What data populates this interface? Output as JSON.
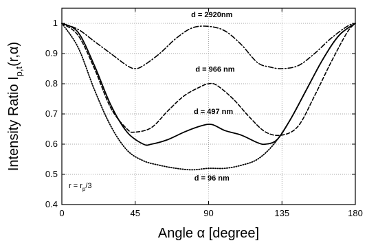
{
  "chart_data": {
    "type": "line",
    "title": "",
    "xlabel": "Angle α [degree]",
    "ylabel": "Intensity Ratio I",
    "ylabel_subscript": "p,t",
    "ylabel_suffix": "(r,α)",
    "xlim": [
      0,
      180
    ],
    "ylim": [
      0.4,
      1.05
    ],
    "x_ticks": [
      0,
      45,
      90,
      135,
      180
    ],
    "y_ticks": [
      0.4,
      0.5,
      0.6,
      0.7,
      0.8,
      0.9,
      1.0
    ],
    "x_tick_labels": [
      "0",
      "45",
      "90",
      "135",
      "180"
    ],
    "y_tick_labels": [
      "0.4",
      "0.5",
      "0.6",
      "0.7",
      "0.8",
      "0.9",
      "1"
    ],
    "grid": "horizontal-dotted",
    "inset_label": {
      "main": "r = r",
      "sub": "p",
      "tail": "/3"
    },
    "series": [
      {
        "name": "d = 2920nm",
        "style": "dash-dot",
        "points": [
          [
            0,
            1.0
          ],
          [
            10,
            0.98
          ],
          [
            20,
            0.94
          ],
          [
            30,
            0.9
          ],
          [
            40,
            0.86
          ],
          [
            45,
            0.85
          ],
          [
            50,
            0.86
          ],
          [
            60,
            0.9
          ],
          [
            70,
            0.95
          ],
          [
            80,
            0.985
          ],
          [
            90,
            0.99
          ],
          [
            100,
            0.975
          ],
          [
            110,
            0.93
          ],
          [
            120,
            0.87
          ],
          [
            128,
            0.855
          ],
          [
            135,
            0.85
          ],
          [
            145,
            0.86
          ],
          [
            155,
            0.9
          ],
          [
            165,
            0.95
          ],
          [
            175,
            0.99
          ],
          [
            180,
            1.0
          ]
        ]
      },
      {
        "name": "d = 966 nm",
        "style": "dashed",
        "points": [
          [
            0,
            1.0
          ],
          [
            10,
            0.96
          ],
          [
            20,
            0.85
          ],
          [
            30,
            0.72
          ],
          [
            40,
            0.65
          ],
          [
            45,
            0.64
          ],
          [
            55,
            0.655
          ],
          [
            65,
            0.71
          ],
          [
            75,
            0.76
          ],
          [
            85,
            0.79
          ],
          [
            90,
            0.8
          ],
          [
            95,
            0.795
          ],
          [
            105,
            0.75
          ],
          [
            115,
            0.69
          ],
          [
            125,
            0.64
          ],
          [
            135,
            0.63
          ],
          [
            145,
            0.66
          ],
          [
            155,
            0.76
          ],
          [
            165,
            0.87
          ],
          [
            175,
            0.97
          ],
          [
            180,
            1.0
          ]
        ]
      },
      {
        "name": "d = 497 nm",
        "style": "solid",
        "points": [
          [
            0,
            1.0
          ],
          [
            10,
            0.97
          ],
          [
            20,
            0.86
          ],
          [
            30,
            0.73
          ],
          [
            40,
            0.64
          ],
          [
            50,
            0.6
          ],
          [
            55,
            0.6
          ],
          [
            65,
            0.615
          ],
          [
            75,
            0.64
          ],
          [
            85,
            0.66
          ],
          [
            92,
            0.665
          ],
          [
            100,
            0.645
          ],
          [
            110,
            0.63
          ],
          [
            120,
            0.605
          ],
          [
            125,
            0.6
          ],
          [
            132,
            0.615
          ],
          [
            140,
            0.68
          ],
          [
            150,
            0.78
          ],
          [
            160,
            0.88
          ],
          [
            170,
            0.96
          ],
          [
            180,
            1.0
          ]
        ]
      },
      {
        "name": "d = 96 nm",
        "style": "dotted",
        "points": [
          [
            0,
            1.0
          ],
          [
            10,
            0.92
          ],
          [
            20,
            0.78
          ],
          [
            30,
            0.66
          ],
          [
            40,
            0.58
          ],
          [
            50,
            0.545
          ],
          [
            60,
            0.53
          ],
          [
            70,
            0.52
          ],
          [
            80,
            0.515
          ],
          [
            90,
            0.52
          ],
          [
            100,
            0.52
          ],
          [
            110,
            0.53
          ],
          [
            120,
            0.55
          ],
          [
            130,
            0.6
          ],
          [
            140,
            0.68
          ],
          [
            150,
            0.78
          ],
          [
            160,
            0.88
          ],
          [
            170,
            0.96
          ],
          [
            180,
            1.0
          ]
        ]
      }
    ],
    "annotations": [
      {
        "text": "d = 2920nm",
        "x": 92,
        "y": 1.02
      },
      {
        "text": "d = 966 nm",
        "x": 94,
        "y": 0.84
      },
      {
        "text": "d = 497 nm",
        "x": 93,
        "y": 0.7
      },
      {
        "text": "d = 96 nm",
        "x": 92,
        "y": 0.48
      }
    ]
  }
}
